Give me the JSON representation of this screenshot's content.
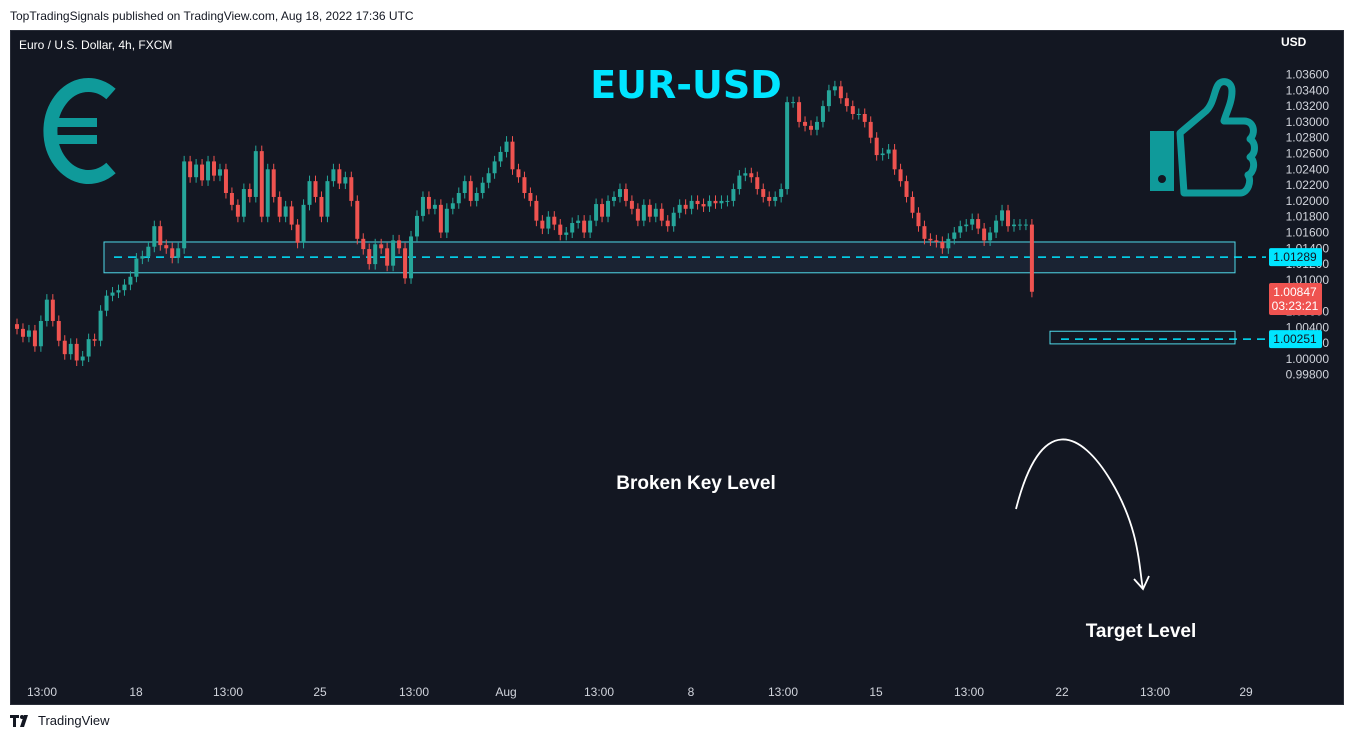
{
  "caption": "TopTradingSignals published on TradingView.com, Aug 18, 2022 17:36 UTC",
  "footer": {
    "brand": "TradingView"
  },
  "colors": {
    "bull": "#26a69a",
    "bear": "#ef5350",
    "accent": "#00e5ff",
    "background": "#131722",
    "icon": "#0f9a9a"
  },
  "icons": [
    "euro-icon",
    "thumbs-up-icon",
    "tradingview-logo-icon"
  ],
  "chart_data": {
    "type": "candlestick",
    "symbol": "Euro / U.S. Dollar, 4h, FXCM",
    "title": "EUR-USD",
    "currency": "USD",
    "ylim": [
      0.998,
      1.0375
    ],
    "y_ticks": [
      "1.03600",
      "1.03400",
      "1.03200",
      "1.03000",
      "1.02800",
      "1.02600",
      "1.02400",
      "1.02200",
      "1.02000",
      "1.01800",
      "1.01600",
      "1.01400",
      "1.01200",
      "1.01000",
      "1.00600",
      "1.00400",
      "1.00200",
      "1.00000",
      "0.99800"
    ],
    "x_ticks": [
      "13:00",
      "18",
      "13:00",
      "25",
      "13:00",
      "Aug",
      "13:00",
      "8",
      "13:00",
      "15",
      "13:00",
      "22",
      "13:00",
      "29"
    ],
    "grid": false,
    "candles": [],
    "annotations": {
      "key_level": {
        "label": "Broken Key Level",
        "price": "1.01289",
        "zone_low": 1.0109,
        "zone_high": 1.0148
      },
      "target": {
        "label": "Target Level",
        "price": "1.00251",
        "zone_low": 1.0019,
        "zone_high": 1.0035
      },
      "last_price": {
        "price": "1.00847",
        "countdown": "03:23:21"
      }
    }
  }
}
